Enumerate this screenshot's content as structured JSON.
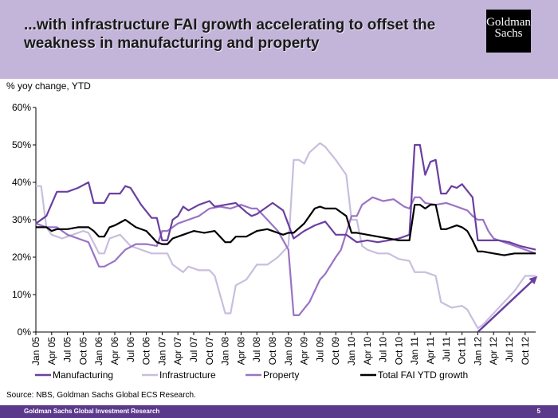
{
  "header": {
    "title": "...with infrastructure FAI growth accelerating to offset the weakness in manufacturing and property",
    "logo_line1": "Goldman",
    "logo_line2": "Sachs"
  },
  "source": "Source: NBS, Goldman Sachs Global ECS Research.",
  "footer": {
    "left": "Goldman Sachs Global Investment Research",
    "page": "5"
  },
  "colors": {
    "header_bg": "#c3b5d9",
    "footer_bg": "#5b3a8c",
    "Manufacturing": "#6a3fa0",
    "Infrastructure": "#c8bedd",
    "Property": "#9a73c4",
    "Total FAI YTD growth": "#000000",
    "arrow": "#6a3fa0"
  },
  "chart_data": {
    "type": "line",
    "ylabel": "% yoy change, YTD",
    "xlabel": "",
    "ylim": [
      0,
      60
    ],
    "ytick_labels": [
      "0%",
      "10%",
      "20%",
      "30%",
      "40%",
      "50%",
      "60%"
    ],
    "grid": false,
    "legend_position": "bottom",
    "x_start": "2005-01",
    "x_end": "2012-12",
    "xtick_labels": [
      "Jan 05",
      "Apr 05",
      "Jul 05",
      "Oct 05",
      "Jan 06",
      "Apr 06",
      "Jul 06",
      "Oct 06",
      "Jan 07",
      "Apr 07",
      "Jul 07",
      "Oct 07",
      "Jan 08",
      "Apr 08",
      "Jul 08",
      "Oct 08",
      "Jan 09",
      "Apr 09",
      "Jul 09",
      "Oct 09",
      "Jan 10",
      "Apr 10",
      "Jul 10",
      "Oct 10",
      "Jan 11",
      "Apr 11",
      "Jul 11",
      "Oct 11",
      "Jan 12",
      "Apr 12",
      "Jul 12",
      "Oct 12"
    ],
    "series": [
      {
        "name": "Manufacturing",
        "points": [
          [
            "2005-01",
            29
          ],
          [
            "2005-03",
            31
          ],
          [
            "2005-05",
            37.5
          ],
          [
            "2005-07",
            37.5
          ],
          [
            "2005-09",
            38.5
          ],
          [
            "2005-11",
            40
          ],
          [
            "2005-12",
            34.5
          ],
          [
            "2006-02",
            34.5
          ],
          [
            "2006-03",
            37
          ],
          [
            "2006-05",
            37
          ],
          [
            "2006-06",
            39
          ],
          [
            "2006-07",
            38.5
          ],
          [
            "2006-09",
            34
          ],
          [
            "2006-11",
            30.5
          ],
          [
            "2006-12",
            30.5
          ],
          [
            "2007-01",
            24.5
          ],
          [
            "2007-02",
            24.5
          ],
          [
            "2007-03",
            30
          ],
          [
            "2007-04",
            31
          ],
          [
            "2007-05",
            33.5
          ],
          [
            "2007-06",
            32.5
          ],
          [
            "2007-08",
            34
          ],
          [
            "2007-10",
            35
          ],
          [
            "2007-11",
            33.5
          ],
          [
            "2008-01",
            34
          ],
          [
            "2008-03",
            34.5
          ],
          [
            "2008-05",
            32
          ],
          [
            "2008-06",
            31
          ],
          [
            "2008-07",
            31.5
          ],
          [
            "2008-09",
            33.5
          ],
          [
            "2008-10",
            34.5
          ],
          [
            "2008-12",
            32.5
          ],
          [
            "2009-02",
            25
          ],
          [
            "2009-04",
            27
          ],
          [
            "2009-06",
            28.5
          ],
          [
            "2009-08",
            29.5
          ],
          [
            "2009-10",
            26
          ],
          [
            "2009-12",
            26
          ],
          [
            "2010-02",
            24
          ],
          [
            "2010-04",
            24.5
          ],
          [
            "2010-06",
            24
          ],
          [
            "2010-08",
            24.5
          ],
          [
            "2010-10",
            25
          ],
          [
            "2010-12",
            26
          ],
          [
            "2011-01",
            50
          ],
          [
            "2011-02",
            50
          ],
          [
            "2011-03",
            42
          ],
          [
            "2011-04",
            45.5
          ],
          [
            "2011-05",
            46
          ],
          [
            "2011-06",
            37
          ],
          [
            "2011-07",
            37
          ],
          [
            "2011-08",
            39
          ],
          [
            "2011-09",
            38.5
          ],
          [
            "2011-10",
            39.5
          ],
          [
            "2011-12",
            36
          ],
          [
            "2012-01",
            24.5
          ],
          [
            "2012-03",
            24.5
          ],
          [
            "2012-05",
            24.5
          ],
          [
            "2012-07",
            24
          ],
          [
            "2012-09",
            23
          ],
          [
            "2012-12",
            22
          ]
        ]
      },
      {
        "name": "Infrastructure",
        "points": [
          [
            "2005-01",
            39
          ],
          [
            "2005-02",
            39
          ],
          [
            "2005-03",
            28
          ],
          [
            "2005-04",
            26
          ],
          [
            "2005-06",
            25
          ],
          [
            "2005-08",
            26
          ],
          [
            "2005-10",
            27
          ],
          [
            "2005-11",
            26.5
          ],
          [
            "2006-01",
            21
          ],
          [
            "2006-02",
            21
          ],
          [
            "2006-03",
            25
          ],
          [
            "2006-05",
            26
          ],
          [
            "2006-07",
            23
          ],
          [
            "2006-09",
            22
          ],
          [
            "2006-11",
            21
          ],
          [
            "2007-01",
            21
          ],
          [
            "2007-02",
            21
          ],
          [
            "2007-03",
            18
          ],
          [
            "2007-05",
            16
          ],
          [
            "2007-06",
            17.5
          ],
          [
            "2007-08",
            16.5
          ],
          [
            "2007-10",
            16.5
          ],
          [
            "2007-11",
            15
          ],
          [
            "2008-01",
            5
          ],
          [
            "2008-02",
            5
          ],
          [
            "2008-03",
            12.5
          ],
          [
            "2008-05",
            14
          ],
          [
            "2008-07",
            18
          ],
          [
            "2008-09",
            18
          ],
          [
            "2008-11",
            20
          ],
          [
            "2009-01",
            23
          ],
          [
            "2009-02",
            46
          ],
          [
            "2009-03",
            46
          ],
          [
            "2009-04",
            45
          ],
          [
            "2009-05",
            48
          ],
          [
            "2009-07",
            50.5
          ],
          [
            "2009-08",
            49.5
          ],
          [
            "2009-10",
            46
          ],
          [
            "2009-12",
            42
          ],
          [
            "2010-01",
            30
          ],
          [
            "2010-02",
            30
          ],
          [
            "2010-03",
            23
          ],
          [
            "2010-04",
            22
          ],
          [
            "2010-06",
            21
          ],
          [
            "2010-08",
            21
          ],
          [
            "2010-10",
            19.5
          ],
          [
            "2010-12",
            19
          ],
          [
            "2011-01",
            16
          ],
          [
            "2011-03",
            16
          ],
          [
            "2011-05",
            15
          ],
          [
            "2011-06",
            8
          ],
          [
            "2011-08",
            6.5
          ],
          [
            "2011-10",
            7
          ],
          [
            "2011-11",
            6
          ],
          [
            "2012-01",
            1
          ],
          [
            "2012-02",
            2
          ],
          [
            "2012-04",
            5
          ],
          [
            "2012-06",
            8
          ],
          [
            "2012-08",
            11
          ],
          [
            "2012-10",
            15
          ],
          [
            "2012-12",
            15
          ]
        ]
      },
      {
        "name": "Property",
        "points": [
          [
            "2005-01",
            29
          ],
          [
            "2005-03",
            28
          ],
          [
            "2005-05",
            28
          ],
          [
            "2005-07",
            26
          ],
          [
            "2005-09",
            25
          ],
          [
            "2005-11",
            24
          ],
          [
            "2006-01",
            17.5
          ],
          [
            "2006-02",
            17.5
          ],
          [
            "2006-04",
            19
          ],
          [
            "2006-06",
            22
          ],
          [
            "2006-08",
            23.5
          ],
          [
            "2006-10",
            23.5
          ],
          [
            "2006-12",
            23
          ],
          [
            "2007-01",
            27
          ],
          [
            "2007-02",
            27
          ],
          [
            "2007-04",
            29
          ],
          [
            "2007-06",
            30
          ],
          [
            "2007-08",
            31
          ],
          [
            "2007-10",
            33
          ],
          [
            "2007-12",
            33.5
          ],
          [
            "2008-02",
            33
          ],
          [
            "2008-04",
            34
          ],
          [
            "2008-06",
            33
          ],
          [
            "2008-07",
            33
          ],
          [
            "2008-09",
            30
          ],
          [
            "2008-11",
            27
          ],
          [
            "2009-01",
            22
          ],
          [
            "2009-02",
            4.5
          ],
          [
            "2009-03",
            4.5
          ],
          [
            "2009-05",
            8
          ],
          [
            "2009-07",
            14
          ],
          [
            "2009-08",
            15.5
          ],
          [
            "2009-10",
            20
          ],
          [
            "2009-11",
            22
          ],
          [
            "2010-01",
            31
          ],
          [
            "2010-02",
            31
          ],
          [
            "2010-03",
            34
          ],
          [
            "2010-05",
            36
          ],
          [
            "2010-07",
            35
          ],
          [
            "2010-09",
            35.5
          ],
          [
            "2010-11",
            33.5
          ],
          [
            "2010-12",
            33
          ],
          [
            "2011-01",
            36
          ],
          [
            "2011-02",
            36
          ],
          [
            "2011-03",
            34.5
          ],
          [
            "2011-05",
            34
          ],
          [
            "2011-07",
            34.5
          ],
          [
            "2011-09",
            33.5
          ],
          [
            "2011-11",
            32.5
          ],
          [
            "2011-12",
            31
          ],
          [
            "2012-01",
            30
          ],
          [
            "2012-02",
            30
          ],
          [
            "2012-03",
            27
          ],
          [
            "2012-04",
            25
          ],
          [
            "2012-06",
            24
          ],
          [
            "2012-08",
            23
          ],
          [
            "2012-10",
            22
          ],
          [
            "2012-12",
            21
          ]
        ]
      },
      {
        "name": "Total FAI YTD growth",
        "points": [
          [
            "2005-01",
            28
          ],
          [
            "2005-03",
            28
          ],
          [
            "2005-04",
            27
          ],
          [
            "2005-05",
            27.5
          ],
          [
            "2005-07",
            27.5
          ],
          [
            "2005-09",
            28
          ],
          [
            "2005-11",
            28
          ],
          [
            "2005-12",
            27
          ],
          [
            "2006-01",
            25.5
          ],
          [
            "2006-02",
            25.5
          ],
          [
            "2006-03",
            28
          ],
          [
            "2006-04",
            28.5
          ],
          [
            "2006-06",
            30
          ],
          [
            "2006-08",
            28
          ],
          [
            "2006-10",
            27
          ],
          [
            "2006-12",
            24
          ],
          [
            "2007-01",
            23.5
          ],
          [
            "2007-02",
            23.5
          ],
          [
            "2007-03",
            25
          ],
          [
            "2007-05",
            26
          ],
          [
            "2007-07",
            27
          ],
          [
            "2007-09",
            26.5
          ],
          [
            "2007-11",
            27
          ],
          [
            "2008-01",
            24
          ],
          [
            "2008-02",
            24
          ],
          [
            "2008-03",
            25.5
          ],
          [
            "2008-05",
            25.5
          ],
          [
            "2008-07",
            27
          ],
          [
            "2008-09",
            27.5
          ],
          [
            "2008-11",
            26.5
          ],
          [
            "2008-12",
            26
          ],
          [
            "2009-01",
            26.5
          ],
          [
            "2009-02",
            26.5
          ],
          [
            "2009-04",
            29
          ],
          [
            "2009-06",
            33
          ],
          [
            "2009-07",
            33.5
          ],
          [
            "2009-08",
            33
          ],
          [
            "2009-10",
            33
          ],
          [
            "2009-12",
            31
          ],
          [
            "2010-01",
            26.5
          ],
          [
            "2010-02",
            26.5
          ],
          [
            "2010-04",
            26
          ],
          [
            "2010-06",
            25.5
          ],
          [
            "2010-08",
            25
          ],
          [
            "2010-10",
            24.5
          ],
          [
            "2010-12",
            24.5
          ],
          [
            "2011-01",
            34
          ],
          [
            "2011-02",
            34
          ],
          [
            "2011-03",
            33
          ],
          [
            "2011-04",
            34
          ],
          [
            "2011-05",
            34
          ],
          [
            "2011-06",
            27.5
          ],
          [
            "2011-07",
            27.5
          ],
          [
            "2011-08",
            28
          ],
          [
            "2011-09",
            28.5
          ],
          [
            "2011-10",
            28
          ],
          [
            "2011-11",
            27
          ],
          [
            "2011-12",
            24.5
          ],
          [
            "2012-01",
            21.5
          ],
          [
            "2012-02",
            21.5
          ],
          [
            "2012-04",
            21
          ],
          [
            "2012-06",
            20.5
          ],
          [
            "2012-08",
            21
          ],
          [
            "2012-10",
            21
          ],
          [
            "2012-12",
            21
          ]
        ]
      }
    ],
    "annotations": [
      {
        "type": "arrow",
        "from": [
          "2012-01",
          0
        ],
        "to": [
          "2012-12",
          14.5
        ]
      }
    ]
  }
}
